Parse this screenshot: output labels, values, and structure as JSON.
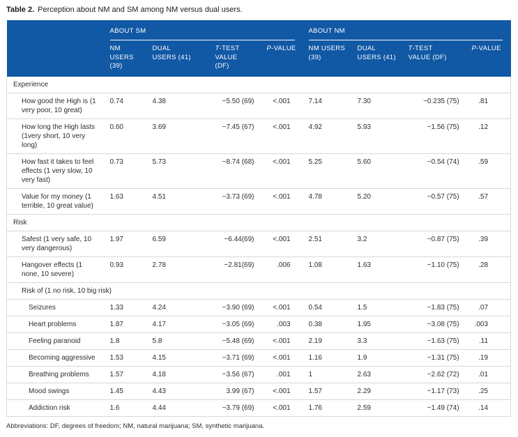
{
  "caption": {
    "label": "Table 2.",
    "text": "Perception about NM and SM among NM versus dual users."
  },
  "header": {
    "groups": [
      {
        "label": "ABOUT SM"
      },
      {
        "label": "ABOUT NM"
      }
    ],
    "columns": [
      {
        "italic": "",
        "line1": "NM USERS",
        "line2": "(39)"
      },
      {
        "italic": "",
        "line1": "DUAL",
        "line2": "USERS (41)"
      },
      {
        "italic": "T",
        "line1": "-TEST",
        "line2": "VALUE (DF)"
      },
      {
        "italic": "P",
        "line1": "-VALUE",
        "line2": ""
      },
      {
        "italic": "",
        "line1": "NM USERS",
        "line2": "(39)"
      },
      {
        "italic": "",
        "line1": "DUAL",
        "line2": "USERS (41)"
      },
      {
        "italic": "T",
        "line1": "-TEST",
        "line2": "VALUE (DF)"
      },
      {
        "italic": "P",
        "line1": "-VALUE",
        "line2": ""
      }
    ]
  },
  "colors": {
    "header_blue": "#1158a5",
    "row_border": "#d8d8d8",
    "body_text": "#2d2d2d"
  },
  "table": {
    "rows": [
      {
        "type": "section",
        "label": "Experience"
      },
      {
        "type": "item",
        "label": "How good the High is (1 very poor, 10 great)",
        "values": [
          "0.74",
          "4.38",
          "−5.50 (69)",
          "<.001",
          "7.14",
          "7.30",
          "−0.235 (75)",
          ".81"
        ]
      },
      {
        "type": "item",
        "label": "How long the High lasts (1very short, 10 very long)",
        "values": [
          "0.60",
          "3.69",
          "−7.45 (67)",
          "<.001",
          "4.92",
          "5.93",
          "−1.56 (75)",
          ".12"
        ]
      },
      {
        "type": "item",
        "label": "How fast it takes to feel effects (1 very slow, 10 very fast)",
        "values": [
          "0.73",
          "5.73",
          "−8.74 (68)",
          "<.001",
          "5.25",
          "5.60",
          "−0.54 (74)",
          ".59"
        ]
      },
      {
        "type": "item",
        "label": "Value for my money (1 terrible, 10 great value)",
        "values": [
          "1.63",
          "4.51",
          "−3.73 (69)",
          "<.001",
          "4.78",
          "5.20",
          "−0.57 (75)",
          ".57"
        ]
      },
      {
        "type": "section",
        "label": "Risk"
      },
      {
        "type": "item",
        "label": "Safest (1 very safe, 10 very dangerous)",
        "values": [
          "1.97",
          "6.59",
          "−6.44(69)",
          "<.001",
          "2.51",
          "3.2",
          "−0.87 (75)",
          ".39"
        ]
      },
      {
        "type": "item",
        "label": "Hangover effects (1 none, 10 severe)",
        "values": [
          "0.93",
          "2.78",
          "−2.81(69)",
          ".006",
          "1.08",
          "1.63",
          "−1.10 (75)",
          ".28"
        ]
      },
      {
        "type": "subsection",
        "label": "Risk of (1 no risk, 10 big risk)"
      },
      {
        "type": "subitem",
        "label": "Seizures",
        "values": [
          "1.33",
          "4.24",
          "−3.90 (69)",
          "<.001",
          "0.54",
          "1.5",
          "−1.83 (75)",
          ".07"
        ]
      },
      {
        "type": "subitem",
        "label": "Heart problems",
        "values": [
          "1.87",
          "4.17",
          "−3.05 (69)",
          ".003",
          "0.38",
          "1.95",
          "−3.08 (75)",
          ".003"
        ]
      },
      {
        "type": "subitem",
        "label": "Feeling paranoid",
        "values": [
          "1.8",
          "5.8",
          "−5.48 (69)",
          "<.001",
          "2.19",
          "3.3",
          "−1.63 (75)",
          ".11"
        ]
      },
      {
        "type": "subitem",
        "label": "Becoming aggressive",
        "values": [
          "1.53",
          "4.15",
          "−3.71 (69)",
          "<.001",
          "1.16",
          "1.9",
          "−1.31 (75)",
          ".19"
        ]
      },
      {
        "type": "subitem",
        "label": "Breathing problems",
        "values": [
          "1.57",
          "4.18",
          "−3.56 (67)",
          ".001",
          "1",
          "2.63",
          "−2.62 (72)",
          ".01"
        ]
      },
      {
        "type": "subitem",
        "label": "Mood swings",
        "values": [
          "1.45",
          "4.43",
          "3.99 (67)",
          "<.001",
          "1.57",
          "2.29",
          "−1.17 (73)",
          ".25"
        ]
      },
      {
        "type": "subitem",
        "label": "Addiction risk",
        "values": [
          "1.6",
          "4.44",
          "−3.79 (69)",
          "<.001",
          "1.76",
          "2.59",
          "−1.49 (74)",
          ".14"
        ]
      }
    ]
  },
  "footnote": "Abbreviations: DF, degrees of freedom; NM, natural marijuana; SM, synthetic marijuana."
}
